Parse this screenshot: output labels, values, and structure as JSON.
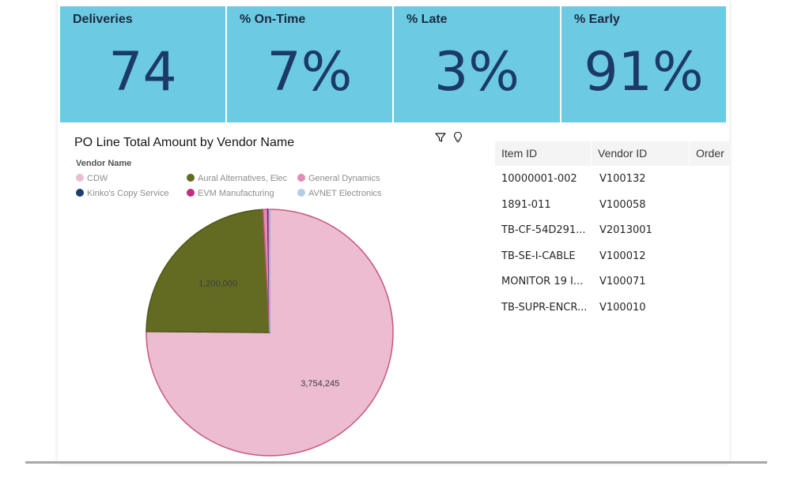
{
  "kpis": [
    {
      "title": "Deliveries",
      "value": "74"
    },
    {
      "title": "% On-Time",
      "value": "7%"
    },
    {
      "title": "% Late",
      "value": "3%"
    },
    {
      "title": "% Early",
      "value": "91%"
    }
  ],
  "colors": {
    "kpi_bg": "#6ccae2",
    "kpi_value": "#1b3a68"
  },
  "chart": {
    "toolbar_icons": [
      "filter-icon",
      "lightbulb-icon"
    ]
  },
  "chart_data": {
    "type": "pie",
    "title": "PO Line Total Amount by Vendor Name",
    "legend_title": "Vendor Name",
    "legend_placement": "top-left",
    "slices": [
      {
        "name": "CDW",
        "value": 3754245,
        "label": "3,754,245",
        "color": "#ecbcd0",
        "stroke": "#c9557e"
      },
      {
        "name": "Aural Alternatives, Elec",
        "value": 1200000,
        "label": "1,200,000",
        "color": "#636b22",
        "stroke": "#4f561a"
      },
      {
        "name": "General Dynamics",
        "value": 30000,
        "label": "",
        "color": "#e58bb6",
        "stroke": "#c9557e"
      },
      {
        "name": "Kinko's Copy Service",
        "value": 5000,
        "label": "",
        "color": "#1f3e6e",
        "stroke": "#1f3e6e"
      },
      {
        "name": "EVM Manufacturing",
        "value": 5000,
        "label": "",
        "color": "#c12f7c",
        "stroke": "#c12f7c"
      },
      {
        "name": "AVNET Electronics",
        "value": 3000,
        "label": "",
        "color": "#b7cbe6",
        "stroke": "#9fb5d8"
      }
    ]
  },
  "table": {
    "headers": [
      "Item ID",
      "Vendor ID",
      "Order"
    ],
    "rows": [
      [
        "10000001-002",
        "V100132"
      ],
      [
        "1891-011",
        "V100058"
      ],
      [
        "TB-CF-54D291...",
        "V2013001"
      ],
      [
        "TB-SE-I-CABLE",
        "V100012"
      ],
      [
        "MONITOR 19 I...",
        "V100071"
      ],
      [
        "TB-SUPR-ENCR...",
        "V100010"
      ]
    ]
  }
}
